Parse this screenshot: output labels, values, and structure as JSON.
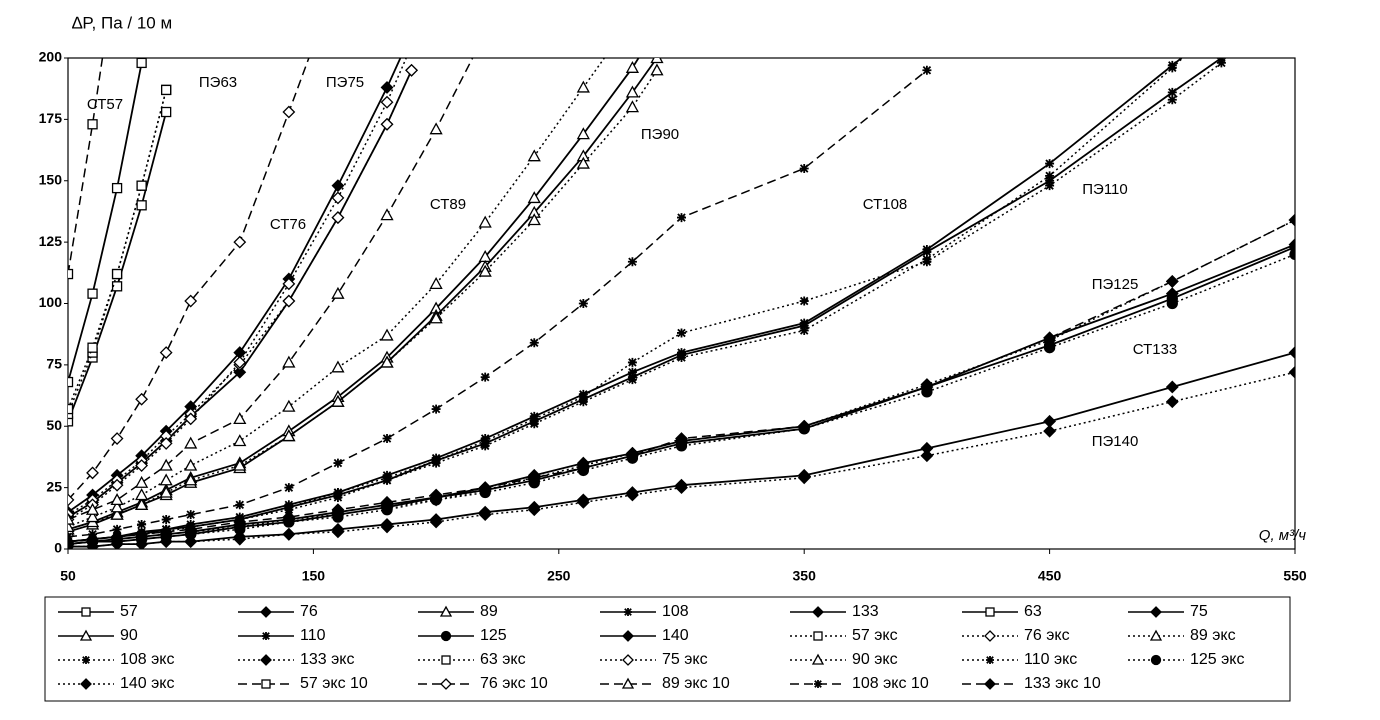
{
  "chart_data": {
    "type": "line",
    "y_label": "∆P, Па / 10 м",
    "x_label": "Q, м³/ч",
    "xlim": [
      50,
      550
    ],
    "xticks": [
      50,
      150,
      250,
      350,
      450,
      550
    ],
    "ylim": [
      0,
      200
    ],
    "yticks": [
      0,
      25,
      50,
      75,
      100,
      125,
      150,
      175,
      200
    ],
    "grid": false,
    "annotations": [
      "СТ57",
      "ПЭ63",
      "ПЭ75",
      "СТ76",
      "СТ89",
      "ПЭ90",
      "СТ108",
      "ПЭ110",
      "ПЭ125",
      "СТ133",
      "ПЭ140"
    ],
    "series": [
      {
        "name": "57",
        "color": "#000",
        "dash": "solid",
        "marker": "square",
        "filled": false,
        "x": [
          50,
          60,
          70,
          80
        ],
        "values": [
          68,
          104,
          147,
          198
        ]
      },
      {
        "name": "76",
        "color": "#000",
        "dash": "solid",
        "marker": "diamond",
        "filled": true,
        "x": [
          50,
          60,
          70,
          80,
          90,
          100,
          120,
          140,
          160,
          180,
          190
        ],
        "values": [
          15,
          22,
          30,
          38,
          48,
          58,
          80,
          110,
          148,
          188,
          210
        ]
      },
      {
        "name": "89",
        "color": "#000",
        "dash": "solid",
        "marker": "triangle",
        "filled": false,
        "x": [
          50,
          60,
          70,
          80,
          90,
          100,
          120,
          140,
          160,
          180,
          200,
          220,
          240,
          260,
          280,
          290
        ],
        "values": [
          8,
          11,
          15,
          19,
          24,
          29,
          35,
          48,
          62,
          78,
          98,
          119,
          143,
          169,
          196,
          212
        ]
      },
      {
        "name": "108",
        "color": "#000",
        "dash": "solid",
        "marker": "star",
        "filled": false,
        "x": [
          50,
          60,
          70,
          80,
          90,
          100,
          120,
          140,
          160,
          180,
          200,
          220,
          240,
          260,
          280,
          300,
          350,
          400,
          450,
          500,
          520
        ],
        "values": [
          3,
          4,
          5,
          7,
          8,
          10,
          13,
          18,
          23,
          30,
          37,
          45,
          54,
          63,
          72,
          80,
          92,
          122,
          157,
          197,
          213
        ]
      },
      {
        "name": "133",
        "color": "#000",
        "dash": "solid",
        "marker": "diamond",
        "filled": true,
        "x": [
          50,
          60,
          70,
          80,
          90,
          100,
          120,
          140,
          160,
          180,
          200,
          220,
          240,
          260,
          280,
          300,
          350,
          400,
          450,
          500,
          550
        ],
        "values": [
          2,
          3,
          4,
          5,
          6,
          7,
          10,
          12,
          15,
          18,
          21,
          25,
          30,
          35,
          39,
          44,
          50,
          66,
          86,
          104,
          124
        ]
      },
      {
        "name": "63",
        "color": "#000",
        "dash": "solid",
        "marker": "square",
        "filled": false,
        "x": [
          50,
          60,
          70,
          80,
          90
        ],
        "values": [
          52,
          78,
          107,
          140,
          178
        ]
      },
      {
        "name": "75",
        "color": "#000",
        "dash": "solid",
        "marker": "diamond",
        "filled": true,
        "x": [
          50,
          60,
          70,
          80,
          90,
          100,
          120,
          140,
          160,
          180,
          190
        ],
        "values": [
          13,
          19,
          27,
          35,
          44,
          54,
          72,
          101,
          135,
          173,
          195
        ]
      },
      {
        "name": "90",
        "color": "#000",
        "dash": "solid",
        "marker": "triangle",
        "filled": false,
        "x": [
          50,
          60,
          70,
          80,
          90,
          100,
          120,
          140,
          160,
          180,
          200,
          220,
          240,
          260,
          280,
          290
        ],
        "values": [
          7,
          10,
          14,
          18,
          22,
          27,
          33,
          46,
          60,
          76,
          95,
          115,
          137,
          160,
          186,
          200
        ]
      },
      {
        "name": "110",
        "color": "#000",
        "dash": "solid",
        "marker": "star",
        "filled": false,
        "x": [
          50,
          60,
          70,
          80,
          90,
          100,
          120,
          140,
          160,
          180,
          200,
          220,
          240,
          260,
          280,
          300,
          350,
          400,
          450,
          500,
          520
        ],
        "values": [
          3,
          4,
          5,
          6,
          8,
          9,
          12,
          17,
          22,
          28,
          36,
          43,
          52,
          61,
          70,
          79,
          91,
          121,
          150,
          186,
          200
        ]
      },
      {
        "name": "125",
        "color": "#000",
        "dash": "solid",
        "marker": "circle",
        "filled": true,
        "x": [
          50,
          60,
          70,
          80,
          90,
          100,
          120,
          140,
          160,
          180,
          200,
          220,
          240,
          260,
          280,
          300,
          350,
          400,
          450,
          500,
          550
        ],
        "values": [
          2,
          3,
          3,
          4,
          5,
          6,
          9,
          11,
          14,
          17,
          21,
          24,
          28,
          33,
          38,
          43,
          49,
          66,
          83,
          102,
          123
        ]
      },
      {
        "name": "140",
        "color": "#000",
        "dash": "solid",
        "marker": "diamond",
        "filled": true,
        "x": [
          50,
          60,
          70,
          80,
          90,
          100,
          120,
          140,
          160,
          180,
          200,
          220,
          240,
          260,
          280,
          300,
          350,
          400,
          450,
          500,
          550
        ],
        "values": [
          1,
          1,
          2,
          2,
          3,
          3,
          5,
          6,
          8,
          10,
          12,
          15,
          17,
          20,
          23,
          26,
          30,
          41,
          52,
          66,
          80
        ]
      },
      {
        "name": "57 экс",
        "color": "#000",
        "dash": "dot",
        "marker": "square",
        "filled": false,
        "x": [
          50,
          60,
          70,
          80,
          90
        ],
        "values": [
          55,
          80,
          112,
          148,
          187
        ]
      },
      {
        "name": "76 экс",
        "color": "#000",
        "dash": "dot",
        "marker": "diamond",
        "filled": false,
        "x": [
          50,
          60,
          70,
          80,
          90,
          100,
          120,
          140,
          160,
          180,
          190
        ],
        "values": [
          14,
          20,
          28,
          36,
          46,
          55,
          75,
          101,
          135,
          173,
          195
        ]
      },
      {
        "name": "89 экс",
        "color": "#000",
        "dash": "dot",
        "marker": "triangle",
        "filled": false,
        "x": [
          50,
          60,
          70,
          80,
          90,
          100,
          120,
          140,
          160,
          180,
          200,
          220,
          240,
          260,
          280,
          290
        ],
        "values": [
          8,
          11,
          14,
          18,
          23,
          28,
          34,
          46,
          60,
          76,
          94,
          113,
          134,
          157,
          180,
          195
        ]
      },
      {
        "name": "108 экс",
        "color": "#000",
        "dash": "dot",
        "marker": "star",
        "filled": false,
        "x": [
          50,
          60,
          70,
          80,
          90,
          100,
          120,
          140,
          160,
          180,
          200,
          220,
          240,
          260,
          280,
          300,
          350,
          400,
          450,
          500,
          520
        ],
        "values": [
          3,
          4,
          5,
          6,
          8,
          9,
          12,
          17,
          23,
          29,
          36,
          44,
          53,
          62,
          76,
          88,
          101,
          117,
          148,
          183,
          198
        ]
      },
      {
        "name": "133 экс",
        "color": "#000",
        "dash": "dot",
        "marker": "diamond",
        "filled": true,
        "x": [
          50,
          60,
          70,
          80,
          90,
          100,
          120,
          140,
          160,
          180,
          200,
          220,
          240,
          260,
          280,
          300,
          350,
          400,
          450,
          500,
          550
        ],
        "values": [
          2,
          3,
          4,
          5,
          6,
          7,
          9,
          12,
          14,
          17,
          20,
          24,
          29,
          34,
          39,
          44,
          50,
          67,
          85,
          109,
          134
        ]
      },
      {
        "name": "63 экс",
        "color": "#000",
        "dash": "dot",
        "marker": "square",
        "filled": false,
        "x": [
          50,
          60,
          70,
          80,
          90
        ],
        "values": [
          57,
          82,
          112,
          148,
          187
        ]
      },
      {
        "name": "75 экс",
        "color": "#000",
        "dash": "dot",
        "marker": "diamond",
        "filled": false,
        "x": [
          50,
          60,
          70,
          80,
          90,
          100,
          120,
          140,
          160,
          180,
          190
        ],
        "values": [
          12,
          18,
          26,
          34,
          43,
          53,
          76,
          108,
          143,
          182,
          205
        ]
      },
      {
        "name": "90 экс",
        "color": "#000",
        "dash": "dot",
        "marker": "triangle",
        "filled": false,
        "x": [
          50,
          60,
          70,
          80,
          90,
          100,
          120,
          140,
          160,
          180,
          200,
          220,
          240,
          260,
          280
        ],
        "values": [
          9,
          13,
          17,
          22,
          28,
          34,
          44,
          58,
          74,
          87,
          108,
          133,
          160,
          188,
          216
        ]
      },
      {
        "name": "110 экс",
        "color": "#000",
        "dash": "dot",
        "marker": "star",
        "filled": false,
        "x": [
          50,
          60,
          70,
          80,
          90,
          100,
          120,
          140,
          160,
          180,
          200,
          220,
          240,
          260,
          280,
          300,
          350,
          400,
          450,
          500,
          520
        ],
        "values": [
          3,
          4,
          5,
          6,
          7,
          9,
          12,
          16,
          21,
          28,
          35,
          42,
          51,
          60,
          69,
          78,
          89,
          118,
          152,
          196,
          215
        ]
      },
      {
        "name": "125 экс",
        "color": "#000",
        "dash": "dot",
        "marker": "circle",
        "filled": true,
        "x": [
          50,
          60,
          70,
          80,
          90,
          100,
          120,
          140,
          160,
          180,
          200,
          220,
          240,
          260,
          280,
          300,
          350,
          400,
          450,
          500,
          550
        ],
        "values": [
          2,
          3,
          3,
          4,
          5,
          6,
          8,
          11,
          13,
          16,
          20,
          23,
          27,
          32,
          37,
          42,
          49,
          64,
          82,
          100,
          120
        ]
      },
      {
        "name": "140 экс",
        "color": "#000",
        "dash": "dot",
        "marker": "diamond",
        "filled": true,
        "x": [
          50,
          60,
          70,
          80,
          90,
          100,
          120,
          140,
          160,
          180,
          200,
          220,
          240,
          260,
          280,
          300,
          350,
          400,
          450,
          500,
          550
        ],
        "values": [
          1,
          1,
          2,
          2,
          3,
          3,
          4,
          6,
          7,
          9,
          11,
          14,
          16,
          19,
          22,
          25,
          29,
          38,
          48,
          60,
          72
        ]
      },
      {
        "name": "57 экс 10",
        "color": "#000",
        "dash": "dash",
        "marker": "square",
        "filled": false,
        "x": [
          50,
          60,
          70
        ],
        "values": [
          112,
          173,
          240
        ]
      },
      {
        "name": "76 экс 10",
        "color": "#000",
        "dash": "dash",
        "marker": "diamond",
        "filled": false,
        "x": [
          50,
          60,
          70,
          80,
          90,
          100,
          120,
          140,
          150
        ],
        "values": [
          20,
          31,
          45,
          61,
          80,
          101,
          125,
          178,
          205
        ]
      },
      {
        "name": "89 экс 10",
        "color": "#000",
        "dash": "dash",
        "marker": "triangle",
        "filled": false,
        "x": [
          50,
          60,
          70,
          80,
          90,
          100,
          120,
          140,
          160,
          180,
          200,
          220
        ],
        "values": [
          12,
          16,
          20,
          27,
          34,
          43,
          53,
          76,
          104,
          136,
          171,
          210
        ]
      },
      {
        "name": "108 экс 10",
        "color": "#000",
        "dash": "dash",
        "marker": "star",
        "filled": false,
        "x": [
          50,
          60,
          70,
          80,
          90,
          100,
          120,
          140,
          160,
          180,
          200,
          220,
          240,
          260,
          280,
          300,
          350,
          400
        ],
        "values": [
          5,
          6,
          8,
          10,
          12,
          14,
          18,
          25,
          35,
          45,
          57,
          70,
          84,
          100,
          117,
          135,
          155,
          195
        ]
      },
      {
        "name": "133 экс 10",
        "color": "#000",
        "dash": "dash",
        "marker": "diamond",
        "filled": true,
        "x": [
          50,
          60,
          70,
          80,
          90,
          100,
          120,
          140,
          160,
          180,
          200,
          220,
          240,
          260,
          280,
          300,
          350,
          400,
          450,
          500,
          550
        ],
        "values": [
          3,
          4,
          5,
          6,
          7,
          8,
          11,
          13,
          16,
          19,
          22,
          25,
          29,
          33,
          38,
          45,
          50,
          66,
          86,
          109,
          134
        ]
      }
    ]
  }
}
